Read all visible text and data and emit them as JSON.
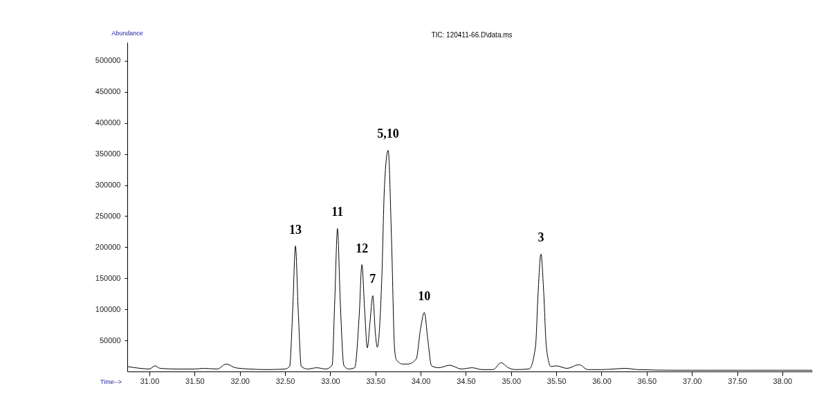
{
  "chart_data": {
    "type": "line",
    "title": "TIC: 120411-66.D\\data.ms",
    "xlabel": "Time-->",
    "ylabel": "Abundance",
    "x": [
      30.755,
      30.9,
      31.0,
      31.06,
      31.12,
      31.3,
      31.5,
      31.6,
      31.75,
      31.85,
      31.95,
      32.1,
      32.3,
      32.5,
      32.55,
      32.585,
      32.615,
      32.645,
      32.68,
      32.75,
      32.85,
      32.95,
      33.02,
      33.05,
      33.08,
      33.11,
      33.15,
      33.2,
      33.27,
      33.32,
      33.35,
      33.38,
      33.41,
      33.44,
      33.47,
      33.5,
      33.52,
      33.57,
      33.6,
      33.64,
      33.68,
      33.71,
      33.73,
      33.8,
      33.86,
      33.95,
      34.0,
      34.04,
      34.08,
      34.12,
      34.2,
      34.32,
      34.45,
      34.57,
      34.68,
      34.8,
      34.89,
      34.97,
      35.05,
      35.2,
      35.27,
      35.3,
      35.33,
      35.36,
      35.39,
      35.44,
      35.5,
      35.62,
      35.75,
      35.85,
      36.0,
      36.27,
      36.4,
      36.8,
      37.2,
      37.6,
      38.0,
      38.33
    ],
    "series": [
      {
        "color": "#000000",
        "values": [
          8000,
          5000,
          4000,
          9000,
          5000,
          4000,
          4000,
          5000,
          4000,
          12000,
          6000,
          4000,
          3000,
          4000,
          8000,
          100000,
          202000,
          100000,
          8000,
          4000,
          6000,
          4000,
          10000,
          115000,
          230000,
          115000,
          10000,
          4000,
          6000,
          90000,
          172000,
          100000,
          38000,
          80000,
          122000,
          60000,
          39000,
          150000,
          300000,
          356000,
          200000,
          40000,
          19000,
          12000,
          12000,
          20000,
          70000,
          95000,
          50000,
          9000,
          6000,
          10000,
          4000,
          6000,
          3000,
          3000,
          14000,
          6000,
          3000,
          4000,
          40000,
          130000,
          189000,
          130000,
          40000,
          8000,
          9000,
          5000,
          11000,
          3000,
          3000,
          5000,
          3000,
          2000,
          2000,
          2000,
          2000,
          2000
        ]
      }
    ],
    "xlim": [
      30.755,
      38.33
    ],
    "xticks": [
      {
        "value": 31,
        "label": "31.00"
      },
      {
        "value": 31.5,
        "label": "31.50"
      },
      {
        "value": 32,
        "label": "32.00"
      },
      {
        "value": 32.5,
        "label": "32.50"
      },
      {
        "value": 33,
        "label": "33.00"
      },
      {
        "value": 33.5,
        "label": "33.50"
      },
      {
        "value": 34,
        "label": "34.00"
      },
      {
        "value": 34.5,
        "label": "34.50"
      },
      {
        "value": 35,
        "label": "35.00"
      },
      {
        "value": 35.5,
        "label": "35.50"
      },
      {
        "value": 36,
        "label": "36.00"
      },
      {
        "value": 36.5,
        "label": "36.50"
      },
      {
        "value": 37,
        "label": "37.00"
      },
      {
        "value": 37.5,
        "label": "37.50"
      },
      {
        "value": 38,
        "label": "38.00"
      }
    ],
    "ylim": [
      0,
      530000
    ],
    "yticks": [
      50000,
      100000,
      150000,
      200000,
      250000,
      300000,
      350000,
      400000,
      450000,
      500000
    ],
    "grid": false,
    "annotations": [
      {
        "text": "13",
        "x": 32.615,
        "y": 202000
      },
      {
        "text": "11",
        "x": 33.08,
        "y": 230000
      },
      {
        "text": "12",
        "x": 33.35,
        "y": 172000
      },
      {
        "text": "7",
        "x": 33.47,
        "y": 122000
      },
      {
        "text": "5,10",
        "x": 33.64,
        "y": 356000
      },
      {
        "text": "10",
        "x": 34.04,
        "y": 95000
      },
      {
        "text": "3",
        "x": 35.33,
        "y": 189000
      }
    ]
  }
}
